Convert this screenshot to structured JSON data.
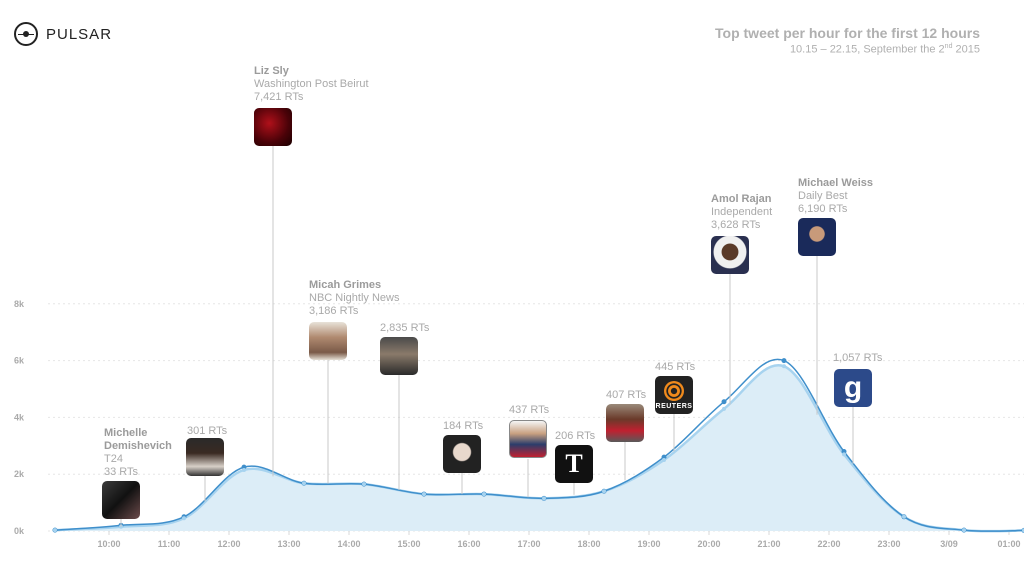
{
  "brand": {
    "name": "PULSAR"
  },
  "header": {
    "title": "Top tweet per hour for the first 12 hours",
    "subtitle": "10.15 – 22.15, September the 2nd 2015"
  },
  "chart_data": {
    "type": "area",
    "title": "Top tweet per hour for the first 12 hours",
    "subtitle": "10.15 – 22.15, September the 2nd 2015",
    "x_tick_labels": [
      "10:00",
      "11:00",
      "12:00",
      "13:00",
      "14:00",
      "15:00",
      "16:00",
      "17:00",
      "18:00",
      "19:00",
      "20:00",
      "21:00",
      "22:00",
      "23:00",
      "3/09",
      "01:00"
    ],
    "y_tick_labels": [
      "0k",
      "2k",
      "4k",
      "6k",
      "8k"
    ],
    "ylim": [
      0,
      9000
    ],
    "xlim": [
      9.1,
      25.3
    ],
    "grid": true,
    "series": [
      {
        "values_x": [
          9.1,
          10.2,
          11.25,
          12.25,
          13.25,
          14.25,
          15.25,
          16.25,
          17.25,
          18.25,
          19.25,
          20.25,
          21.25,
          22.25,
          23.25,
          24.25,
          25.25
        ],
        "values": [
          30,
          200,
          500,
          2250,
          1680,
          1650,
          1300,
          1300,
          1150,
          1400,
          2600,
          4550,
          6000,
          2800,
          500,
          30,
          20
        ]
      },
      {
        "values_x": [
          9.1,
          10.2,
          11.25,
          12.25,
          13.25,
          14.25,
          15.25,
          16.25,
          17.25,
          18.25,
          19.25,
          20.25,
          21.25,
          22.25,
          23.25,
          24.25,
          25.25
        ],
        "values": [
          30,
          150,
          450,
          2150,
          1680,
          1650,
          1300,
          1300,
          1150,
          1400,
          2500,
          4300,
          5800,
          2700,
          500,
          30,
          20
        ]
      }
    ],
    "annotations": [
      {
        "name": "Michelle Demishevich",
        "source": "T24",
        "rts": "33 RTs",
        "x": 10.45,
        "img": "group"
      },
      {
        "name": "",
        "source": "",
        "rts": "301 RTs",
        "x": 11.75,
        "img": "man-cap"
      },
      {
        "name": "Liz Sly",
        "source": "Washington Post Beirut",
        "rts": "7,421 RTs",
        "x": 12.9,
        "img": "red-abstract"
      },
      {
        "name": "Micah Grimes",
        "source": "NBC Nightly News",
        "rts": "3,186 RTs",
        "x": 13.8,
        "img": "glasses-man"
      },
      {
        "name": "",
        "source": "",
        "rts": "2,835 RTs",
        "x": 15.0,
        "img": "bearded-man"
      },
      {
        "name": "",
        "source": "",
        "rts": "184 RTs",
        "x": 16.05,
        "img": "woman"
      },
      {
        "name": "",
        "source": "",
        "rts": "437 RTs",
        "x": 17.2,
        "img": "suit-man"
      },
      {
        "name": "",
        "source": "",
        "rts": "206 RTs",
        "x": 17.95,
        "img": "times-logo"
      },
      {
        "name": "",
        "source": "",
        "rts": "407 RTs",
        "x": 18.8,
        "img": "runner"
      },
      {
        "name": "",
        "source": "",
        "rts": "445 RTs",
        "x": 19.6,
        "img": "reuters-logo"
      },
      {
        "name": "Amol Rajan",
        "source": "Independent",
        "rts": "3,628 RTs",
        "x": 20.5,
        "img": "amol"
      },
      {
        "name": "Michael Weiss",
        "source": "Daily Best",
        "rts": "6,190 RTs",
        "x": 21.95,
        "img": "weiss"
      },
      {
        "name": "",
        "source": "",
        "rts": "1,057 RTs",
        "x": 22.55,
        "img": "g-logo"
      }
    ],
    "colors": {
      "line": "#3f8fcb",
      "line_light": "#a7d3ef",
      "fill": "#dcedf7",
      "grid": "#e6e6e6"
    }
  }
}
